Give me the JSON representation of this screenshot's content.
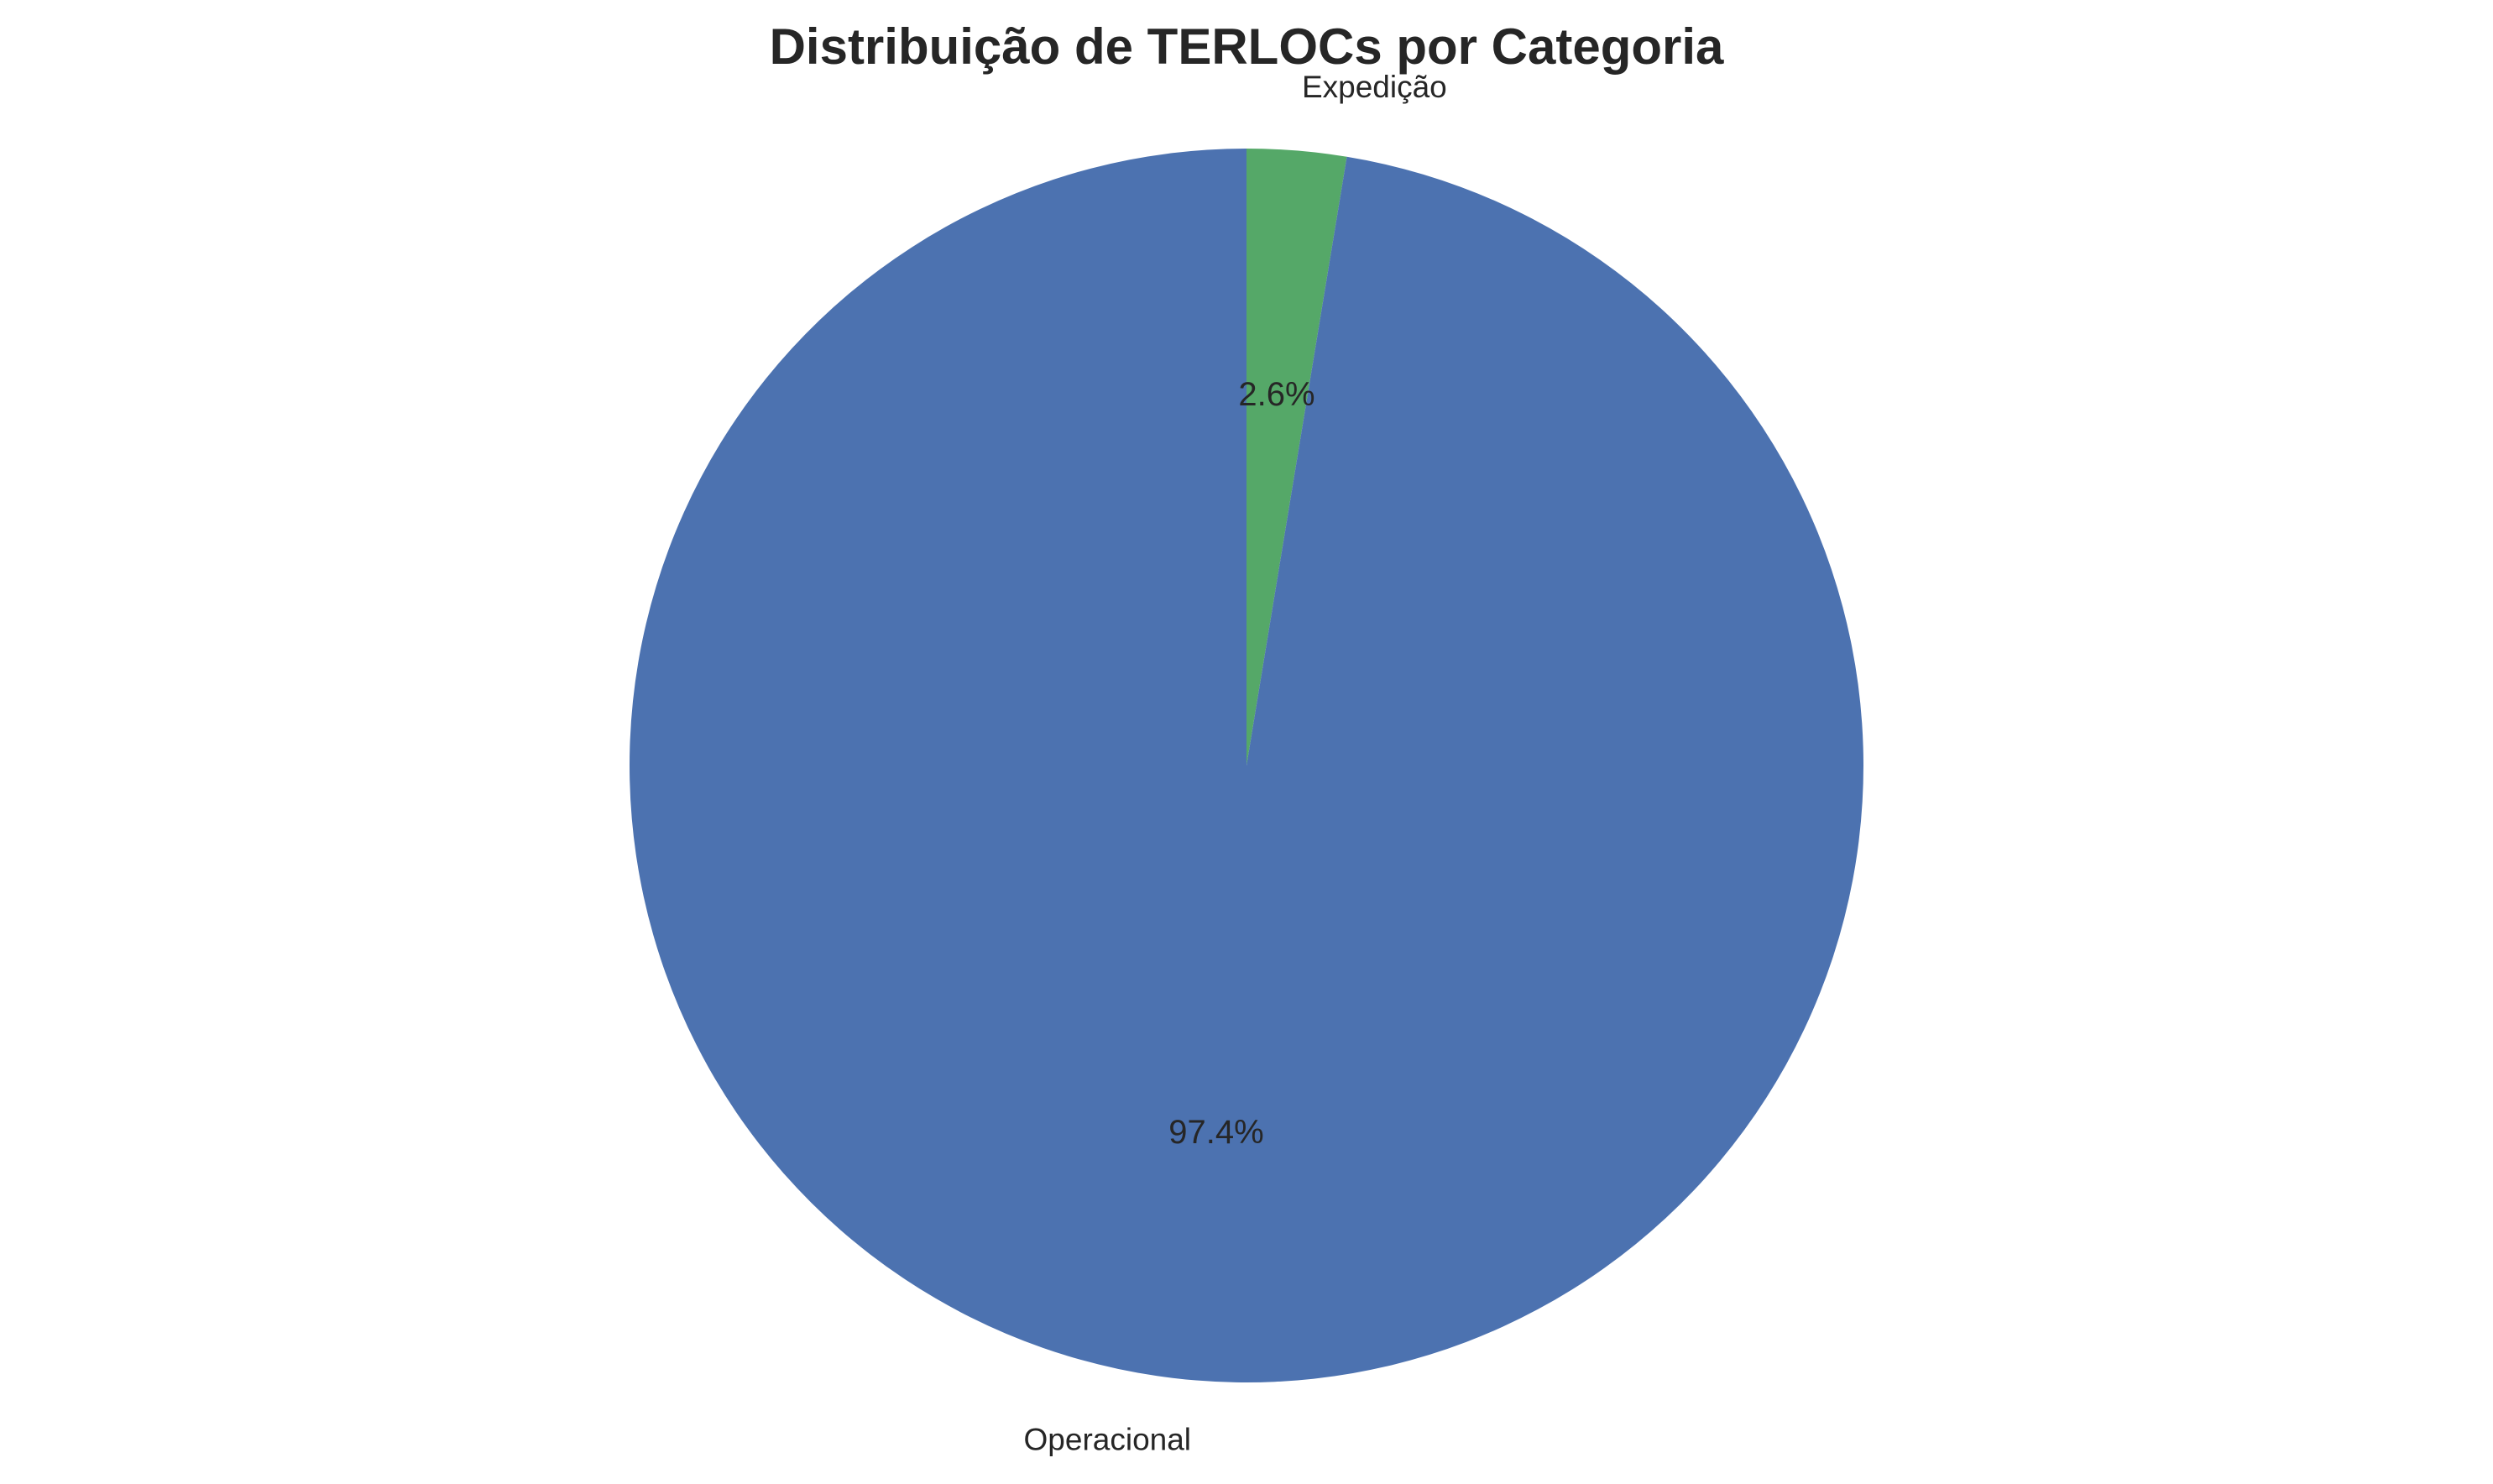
{
  "chart_data": {
    "type": "pie",
    "title": "Distribuição de TERLOCs por Categoria",
    "start_angle_deg": 90,
    "direction": "clockwise",
    "slices": [
      {
        "label": "Expedição",
        "value": 2.6,
        "pct_label": "2.6%",
        "color": "#55a868"
      },
      {
        "label": "Operacional",
        "value": 97.4,
        "pct_label": "97.4%",
        "color": "#4c72b0"
      }
    ]
  }
}
